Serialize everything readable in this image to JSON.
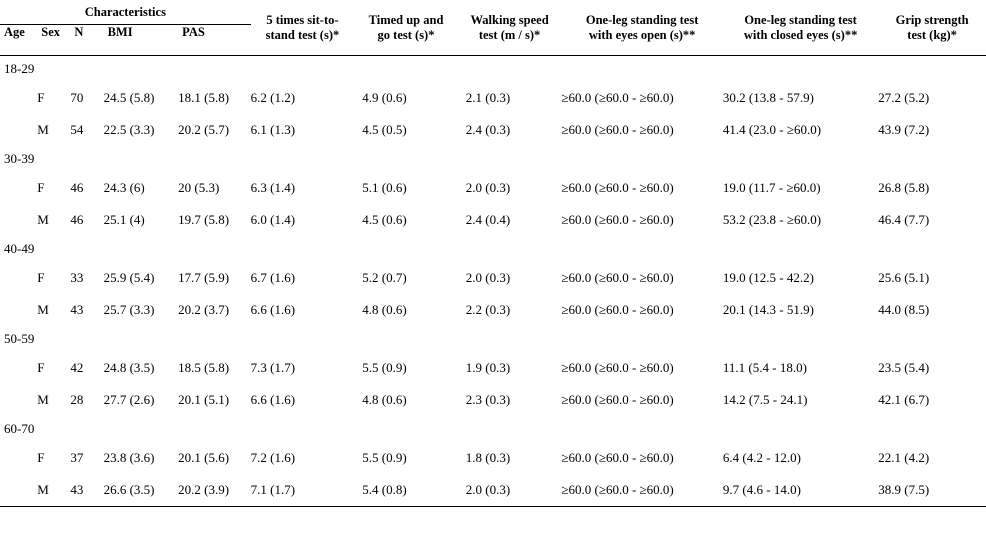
{
  "headers": {
    "characteristics": "Characteristics",
    "age": "Age",
    "sex": "Sex",
    "n": "N",
    "bmi": "BMI",
    "pas": "PAS",
    "sts": "5 times sit-to-\nstand test (s)*",
    "tug": "Timed up and\ngo test (s)*",
    "ws": "Walking speed\ntest (m / s)*",
    "olo": "One-leg standing test\nwith eyes open (s)**",
    "olc": "One-leg standing test\nwith closed eyes (s)**",
    "grip": "Grip strength\ntest (kg)*"
  },
  "groups": [
    {
      "age": "18-29",
      "rows": [
        {
          "sex": "F",
          "n": "70",
          "bmi": "24.5 (5.8)",
          "pas": "18.1 (5.8)",
          "sts": "6.2 (1.2)",
          "tug": "4.9 (0.6)",
          "ws": "2.1 (0.3)",
          "olo": "≥60.0 (≥60.0 - ≥60.0)",
          "olc": "30.2 (13.8 - 57.9)",
          "grip": "27.2 (5.2)"
        },
        {
          "sex": "M",
          "n": "54",
          "bmi": "22.5 (3.3)",
          "pas": "20.2 (5.7)",
          "sts": "6.1 (1.3)",
          "tug": "4.5 (0.5)",
          "ws": "2.4 (0.3)",
          "olo": "≥60.0 (≥60.0 - ≥60.0)",
          "olc": "41.4 (23.0 - ≥60.0)",
          "grip": "43.9 (7.2)"
        }
      ]
    },
    {
      "age": "30-39",
      "rows": [
        {
          "sex": "F",
          "n": "46",
          "bmi": "24.3 (6)",
          "pas": "20 (5.3)",
          "sts": "6.3 (1.4)",
          "tug": "5.1 (0.6)",
          "ws": "2.0 (0.3)",
          "olo": "≥60.0 (≥60.0 - ≥60.0)",
          "olc": "19.0 (11.7 - ≥60.0)",
          "grip": "26.8 (5.8)"
        },
        {
          "sex": "M",
          "n": "46",
          "bmi": "25.1 (4)",
          "pas": "19.7 (5.8)",
          "sts": "6.0 (1.4)",
          "tug": "4.5 (0.6)",
          "ws": "2.4 (0.4)",
          "olo": "≥60.0 (≥60.0 - ≥60.0)",
          "olc": "53.2 (23.8 - ≥60.0)",
          "grip": "46.4 (7.7)"
        }
      ]
    },
    {
      "age": "40-49",
      "rows": [
        {
          "sex": "F",
          "n": "33",
          "bmi": "25.9 (5.4)",
          "pas": "17.7 (5.9)",
          "sts": "6.7 (1.6)",
          "tug": "5.2 (0.7)",
          "ws": "2.0 (0.3)",
          "olo": "≥60.0 (≥60.0 - ≥60.0)",
          "olc": "19.0 (12.5 - 42.2)",
          "grip": "25.6 (5.1)"
        },
        {
          "sex": "M",
          "n": "43",
          "bmi": "25.7 (3.3)",
          "pas": "20.2 (3.7)",
          "sts": "6.6 (1.6)",
          "tug": "4.8 (0.6)",
          "ws": "2.2 (0.3)",
          "olo": "≥60.0 (≥60.0 - ≥60.0)",
          "olc": "20.1 (14.3 - 51.9)",
          "grip": "44.0 (8.5)"
        }
      ]
    },
    {
      "age": "50-59",
      "rows": [
        {
          "sex": "F",
          "n": "42",
          "bmi": "24.8 (3.5)",
          "pas": "18.5 (5.8)",
          "sts": "7.3 (1.7)",
          "tug": "5.5 (0.9)",
          "ws": "1.9 (0.3)",
          "olo": "≥60.0 (≥60.0 - ≥60.0)",
          "olc": "11.1 (5.4 - 18.0)",
          "grip": "23.5 (5.4)"
        },
        {
          "sex": "M",
          "n": "28",
          "bmi": "27.7 (2.6)",
          "pas": "20.1 (5.1)",
          "sts": "6.6 (1.6)",
          "tug": "4.8 (0.6)",
          "ws": "2.3 (0.3)",
          "olo": "≥60.0 (≥60.0 - ≥60.0)",
          "olc": "14.2 (7.5 - 24.1)",
          "grip": "42.1 (6.7)"
        }
      ]
    },
    {
      "age": "60-70",
      "rows": [
        {
          "sex": "F",
          "n": "37",
          "bmi": "23.8 (3.6)",
          "pas": "20.1 (5.6)",
          "sts": "7.2 (1.6)",
          "tug": "5.5 (0.9)",
          "ws": "1.8 (0.3)",
          "olo": "≥60.0 (≥60.0 - ≥60.0)",
          "olc": "6.4 (4.2 - 12.0)",
          "grip": "22.1 (4.2)"
        },
        {
          "sex": "M",
          "n": "43",
          "bmi": "26.6 (3.5)",
          "pas": "20.2 (3.9)",
          "sts": "7.1 (1.7)",
          "tug": "5.4 (0.8)",
          "ws": "2.0 (0.3)",
          "olo": "≥60.0 (≥60.0 - ≥60.0)",
          "olc": "9.7 (4.6 - 14.0)",
          "grip": "38.9 (7.5)"
        }
      ]
    }
  ]
}
